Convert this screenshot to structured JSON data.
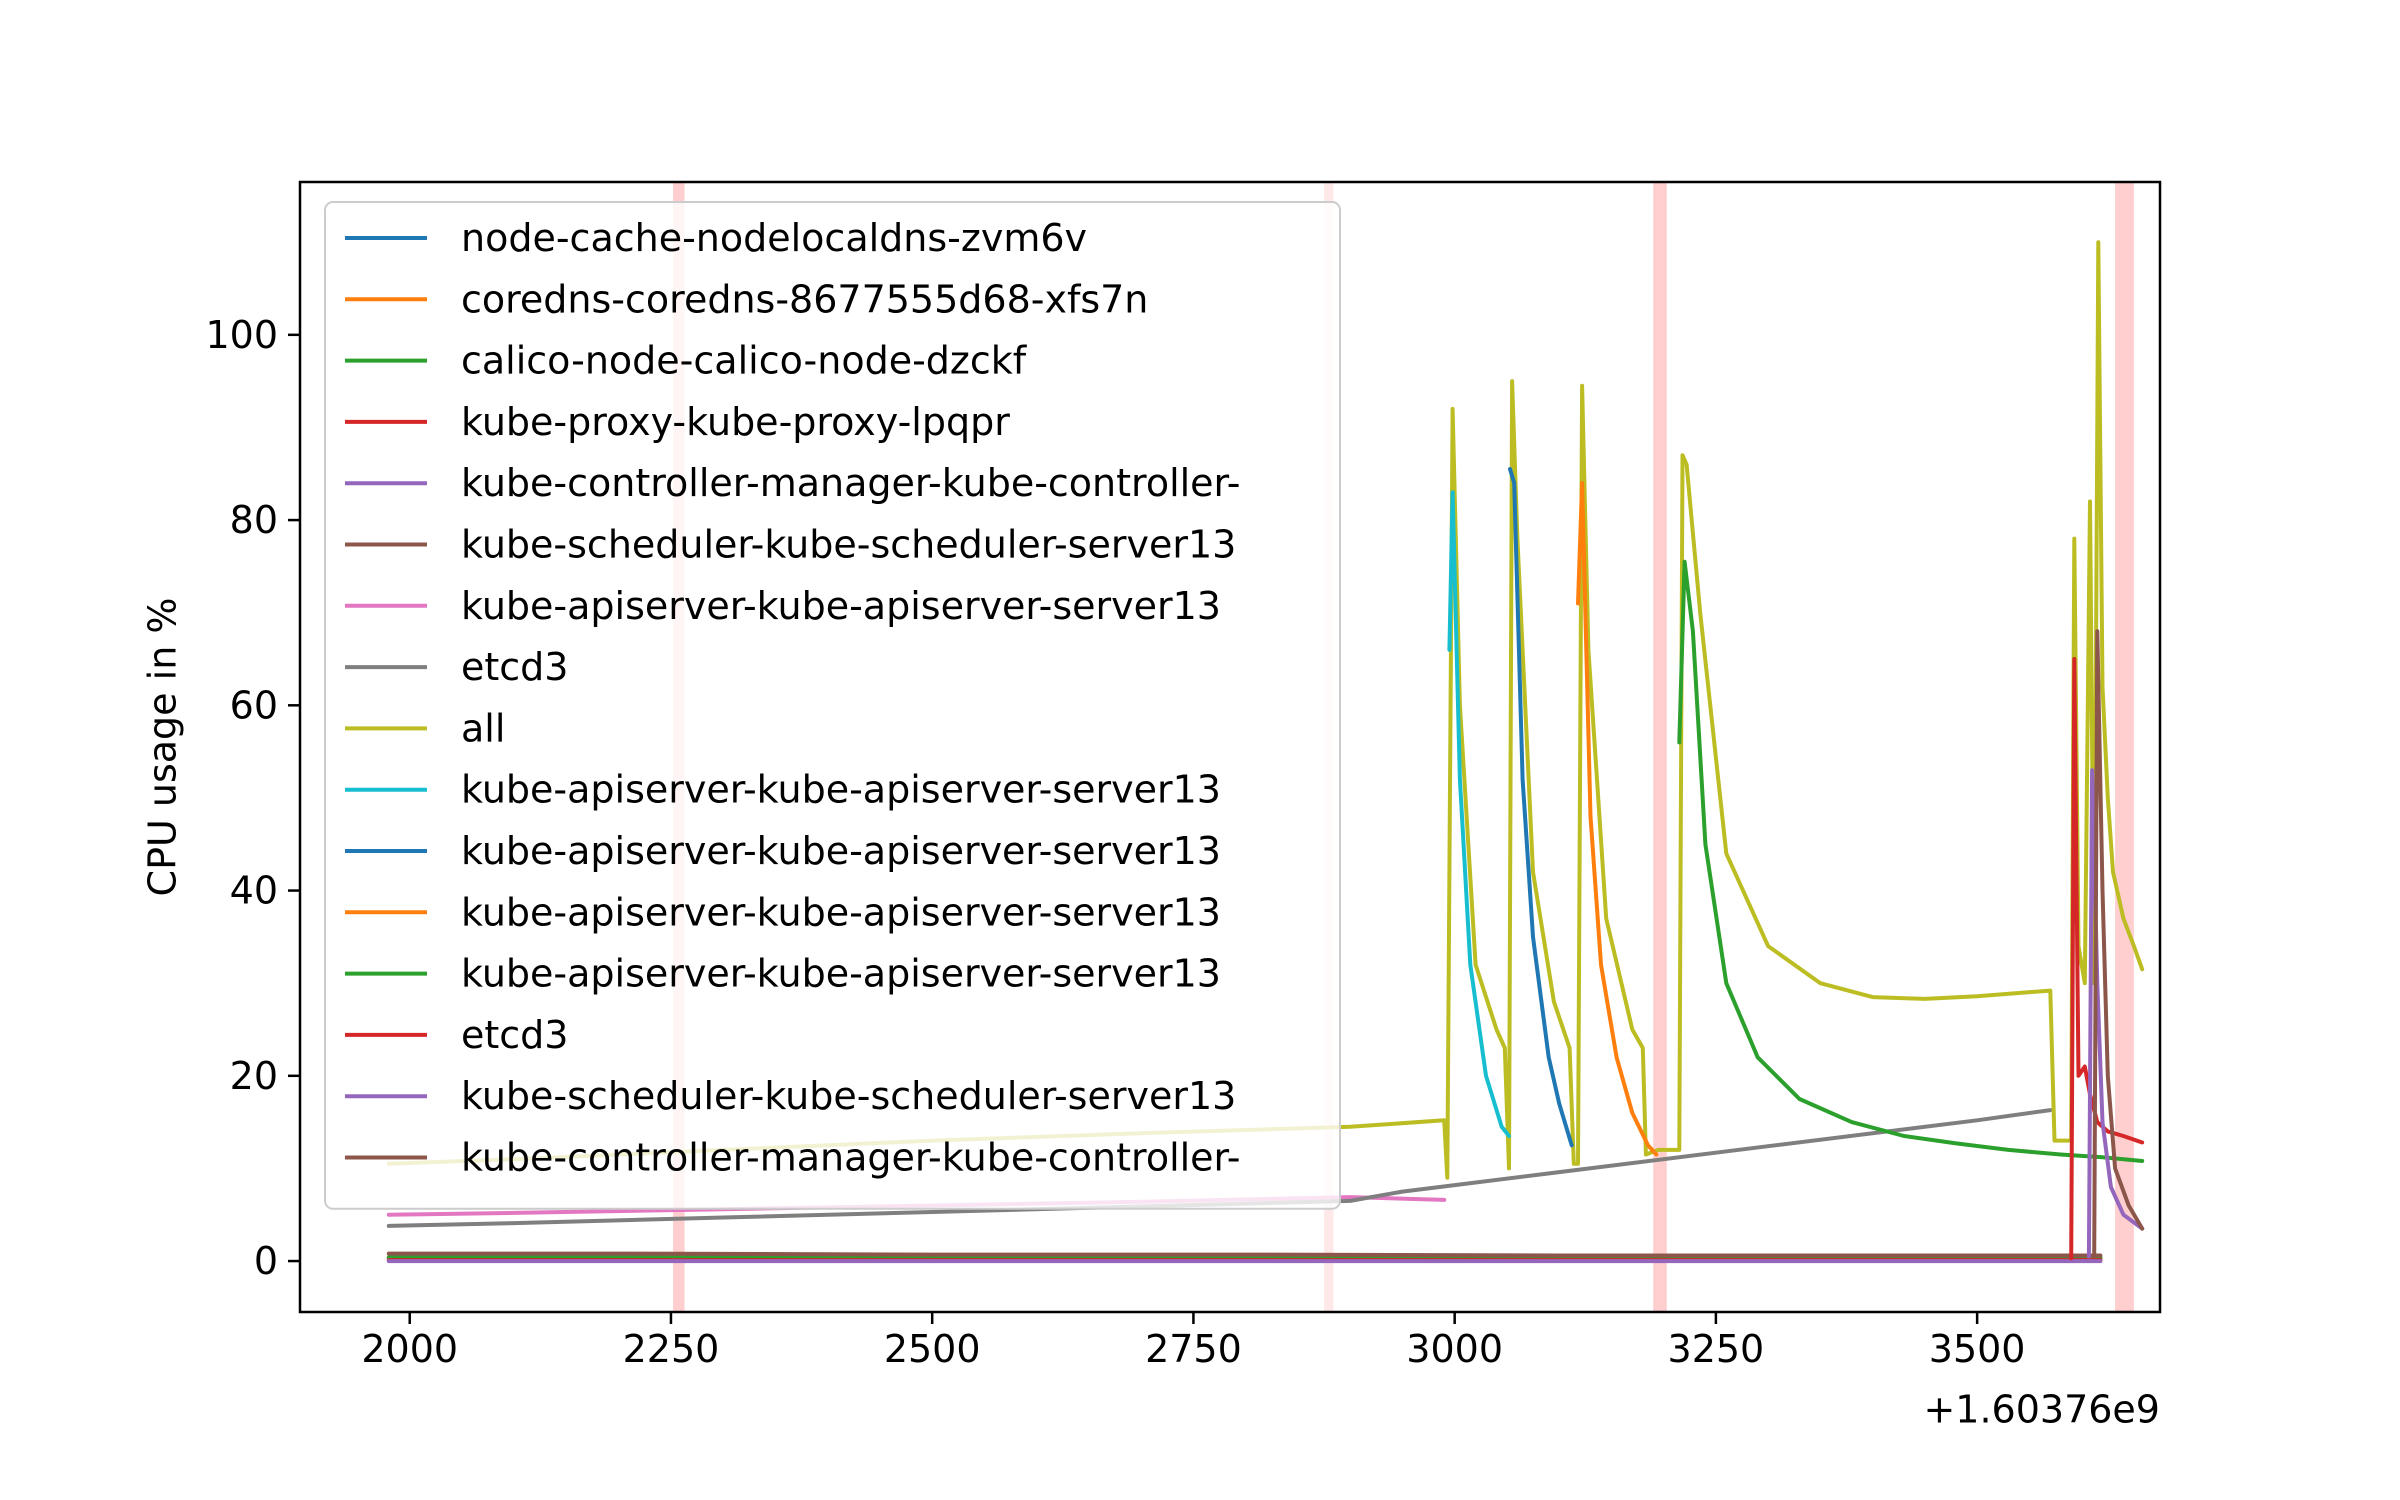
{
  "chart_data": {
    "type": "line",
    "title": "",
    "xlabel": "",
    "ylabel": "CPU usage in %",
    "x_offset_label": "+1.60376e9",
    "xlim": [
      1895,
      3675
    ],
    "ylim": [
      -5.5,
      116.5
    ],
    "xticks": [
      2000,
      2250,
      2500,
      2750,
      3000,
      3250,
      3500
    ],
    "yticks": [
      0,
      20,
      40,
      60,
      80,
      100
    ],
    "grid": false,
    "legend_position": "upper left",
    "highlight_bands": [
      {
        "x": [
          2252,
          2263
        ],
        "color": "#ffb3b3",
        "opacity": 0.65
      },
      {
        "x": [
          2875,
          2884
        ],
        "color": "#ffb3b3",
        "opacity": 0.3
      },
      {
        "x": [
          3190,
          3203
        ],
        "color": "#ffb3b3",
        "opacity": 0.65
      },
      {
        "x": [
          3632,
          3650
        ],
        "color": "#ffb3b3",
        "opacity": 0.65
      }
    ],
    "series": [
      {
        "name": "node-cache-nodelocaldns-zvm6v",
        "color": "#1f77b4",
        "x": [
          1980,
          2200,
          2500,
          2800,
          3100,
          3400,
          3600,
          3618
        ],
        "y": [
          0.3,
          0.3,
          0.3,
          0.3,
          0.3,
          0.3,
          0.3,
          0.3
        ]
      },
      {
        "name": "coredns-coredns-8677555d68-xfs7n",
        "color": "#ff7f0e",
        "x": [
          1980,
          2300,
          2600,
          2900,
          3200,
          3500,
          3618
        ],
        "y": [
          0.2,
          0.2,
          0.2,
          0.2,
          0.2,
          0.2,
          0.2
        ]
      },
      {
        "name": "calico-node-calico-node-dzckf",
        "color": "#2ca02c",
        "x": [
          1980,
          2300,
          2600,
          2900,
          3200,
          3500,
          3618
        ],
        "y": [
          0.4,
          0.4,
          0.4,
          0.4,
          0.4,
          0.4,
          0.4
        ]
      },
      {
        "name": "kube-proxy-kube-proxy-lpqpr",
        "color": "#d62728",
        "x": [
          1980,
          2300,
          2600,
          2900,
          3200,
          3500,
          3618
        ],
        "y": [
          0.1,
          0.1,
          0.1,
          0.1,
          0.1,
          0.1,
          0.1
        ]
      },
      {
        "name": "kube-controller-manager-kube-controller-",
        "color": "#9467bd",
        "x": [
          1980,
          2300,
          2600,
          2900,
          3200,
          3500,
          3618
        ],
        "y": [
          0.0,
          0.0,
          0.0,
          0.0,
          0.0,
          0.0,
          0.0
        ]
      },
      {
        "name": "kube-scheduler-kube-scheduler-server13",
        "color": "#8c564b",
        "x": [
          1980,
          2200,
          2500,
          2800,
          3100,
          3400,
          3618
        ],
        "y": [
          0.8,
          0.8,
          0.7,
          0.7,
          0.6,
          0.6,
          0.6
        ]
      },
      {
        "name": "kube-apiserver-kube-apiserver-server13",
        "color": "#e377c2",
        "x": [
          1980,
          2100,
          2300,
          2500,
          2700,
          2900,
          2990
        ],
        "y": [
          5.0,
          5.2,
          5.6,
          6.0,
          6.4,
          6.9,
          6.6
        ]
      },
      {
        "name": "etcd3",
        "color": "#7f7f7f",
        "x": [
          1980,
          2100,
          2300,
          2500,
          2700,
          2900,
          2950,
          3100,
          3300,
          3500,
          3570
        ],
        "y": [
          3.8,
          4.1,
          4.7,
          5.3,
          5.9,
          6.5,
          7.5,
          9.6,
          12.4,
          15.2,
          16.3
        ]
      },
      {
        "name": "all",
        "color": "#bcbd22",
        "x": [
          1980,
          2100,
          2300,
          2500,
          2700,
          2900,
          2990,
          2993,
          2998,
          3005,
          3020,
          3040,
          3048,
          3052,
          3055,
          3060,
          3075,
          3095,
          3110,
          3114,
          3118,
          3122,
          3128,
          3145,
          3170,
          3180,
          3183,
          3195,
          3215,
          3218,
          3222,
          3235,
          3260,
          3300,
          3350,
          3400,
          3450,
          3500,
          3570,
          3574,
          3590,
          3593,
          3597,
          3603,
          3608,
          3612,
          3616,
          3620,
          3625,
          3630,
          3640,
          3650,
          3658
        ],
        "y": [
          10.5,
          11.0,
          12.0,
          13.0,
          13.8,
          14.5,
          15.2,
          9.0,
          92.0,
          60.0,
          32.0,
          25.0,
          23.0,
          10.0,
          95.0,
          78.0,
          42.0,
          28.0,
          23.0,
          10.5,
          10.5,
          94.5,
          66.0,
          37.0,
          25.0,
          23.0,
          11.5,
          12.0,
          12.0,
          87.0,
          86.0,
          70.0,
          44.0,
          34.0,
          30.0,
          28.5,
          28.3,
          28.6,
          29.2,
          13.0,
          13.0,
          78.0,
          34.0,
          30.0,
          82.0,
          30.0,
          110.0,
          62.0,
          50.0,
          42.0,
          37.0,
          34.0,
          31.5
        ]
      },
      {
        "name": "kube-apiserver-kube-apiserver-server13",
        "color": "#17becf",
        "x": [
          2995,
          2998,
          3005,
          3015,
          3030,
          3045,
          3052
        ],
        "y": [
          66.0,
          83.0,
          52.0,
          32.0,
          20.0,
          14.5,
          13.5
        ]
      },
      {
        "name": "kube-apiserver-kube-apiserver-server13",
        "color": "#1f77b4",
        "x": [
          3053,
          3057,
          3065,
          3075,
          3090,
          3100,
          3112
        ],
        "y": [
          85.5,
          84.0,
          52.0,
          35.0,
          22.0,
          17.0,
          12.5
        ]
      },
      {
        "name": "kube-apiserver-kube-apiserver-server13",
        "color": "#ff7f0e",
        "x": [
          3118,
          3122,
          3130,
          3140,
          3155,
          3170,
          3185,
          3193
        ],
        "y": [
          71.0,
          84.0,
          48.0,
          32.0,
          22.0,
          16.0,
          12.5,
          11.5
        ]
      },
      {
        "name": "kube-apiserver-kube-apiserver-server13",
        "color": "#2ca02c",
        "x": [
          3215,
          3220,
          3228,
          3240,
          3260,
          3290,
          3330,
          3380,
          3430,
          3480,
          3530,
          3580,
          3620,
          3658
        ],
        "y": [
          56.0,
          75.5,
          68.0,
          45.0,
          30.0,
          22.0,
          17.5,
          15.0,
          13.5,
          12.7,
          12.0,
          11.5,
          11.2,
          10.8
        ]
      },
      {
        "name": "etcd3",
        "color": "#d62728",
        "x": [
          3590,
          3593,
          3597,
          3603,
          3608,
          3615,
          3625,
          3640,
          3658
        ],
        "y": [
          0.3,
          65.0,
          20.0,
          21.0,
          18.0,
          15.0,
          14.0,
          13.5,
          12.8
        ]
      },
      {
        "name": "kube-scheduler-kube-scheduler-server13",
        "color": "#9467bd",
        "x": [
          3607,
          3610,
          3615,
          3620,
          3628,
          3640,
          3658
        ],
        "y": [
          0.5,
          53.0,
          30.0,
          15.0,
          8.0,
          5.0,
          3.5
        ]
      },
      {
        "name": "kube-controller-manager-kube-controller-",
        "color": "#8c564b",
        "x": [
          3612,
          3615,
          3620,
          3625,
          3632,
          3645,
          3658
        ],
        "y": [
          0.5,
          68.0,
          40.0,
          20.0,
          10.0,
          6.0,
          3.5
        ]
      }
    ]
  }
}
